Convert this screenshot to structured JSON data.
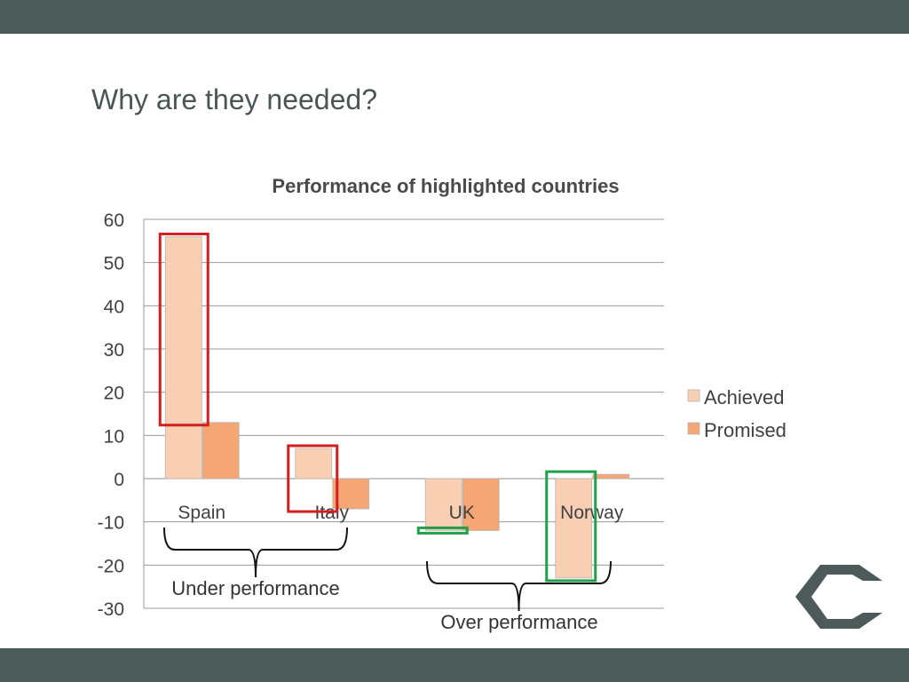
{
  "slide": {
    "title": "Why are they needed?"
  },
  "chart_data": {
    "type": "bar",
    "title": "Performance of highlighted countries",
    "categories": [
      "Spain",
      "Italy",
      "UK",
      "Norway"
    ],
    "series": [
      {
        "name": "Achieved",
        "values": [
          56,
          7,
          -12,
          -23
        ],
        "color": "#f9cfb3"
      },
      {
        "name": "Promised",
        "values": [
          13,
          -7,
          -12,
          1
        ],
        "color": "#f5a675"
      }
    ],
    "ylim": [
      -30,
      60
    ],
    "yticks": [
      60,
      50,
      40,
      30,
      20,
      10,
      0,
      -10,
      -20,
      -30
    ],
    "grid": true,
    "legend": "right",
    "annotations": {
      "under_label": "Under performance",
      "over_label": "Over performance",
      "highlight_under_color": "#d21f1f",
      "highlight_over_color": "#1fa04a"
    }
  },
  "colors": {
    "bars": "#4d5a5a",
    "title_text": "#4a5555",
    "logo": "#4d5a5a"
  }
}
